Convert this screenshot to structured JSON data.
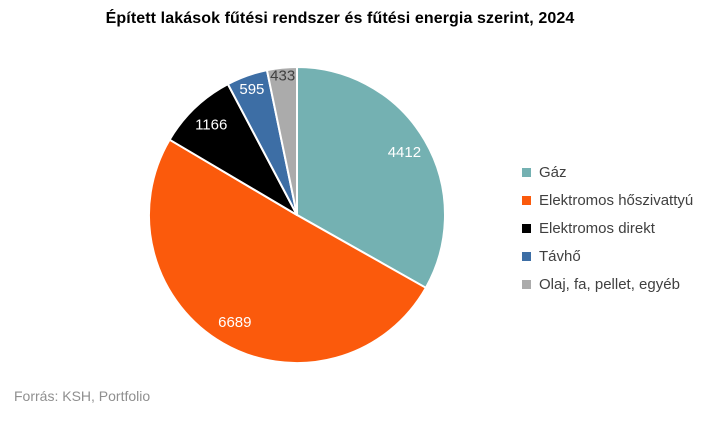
{
  "title": "Épített lakások fűtési rendszer és fűtési energia szerint, 2024",
  "source": "Forrás: KSH, Portfolio",
  "chart_data": {
    "type": "pie",
    "title": "Épített lakások fűtési rendszer és fűtési energia szerint, 2024",
    "legend_position": "right",
    "start_angle_deg": 0,
    "direction": "clockwise",
    "total": 13295,
    "data_labels": "absolute values",
    "slices": [
      {
        "key": "gaz",
        "label": "Gáz",
        "value": 4412,
        "color": "#74b1b2",
        "value_label_color": "#ffffff"
      },
      {
        "key": "elektromos-hoszivattyu",
        "label": "Elektromos hőszivattyú",
        "value": 6689,
        "color": "#fb5a0c",
        "value_label_color": "#ffffff"
      },
      {
        "key": "elektromos-direkt",
        "label": "Elektromos direkt",
        "value": 1166,
        "color": "#000000",
        "value_label_color": "#ffffff"
      },
      {
        "key": "tavho",
        "label": "Távhő",
        "value": 595,
        "color": "#3d6ea5",
        "value_label_color": "#ffffff"
      },
      {
        "key": "olaj-fa-pellet-egyeb",
        "label": "Olaj, fa, pellet, egyéb",
        "value": 433,
        "color": "#ababab",
        "value_label_color": "#404040"
      }
    ]
  }
}
